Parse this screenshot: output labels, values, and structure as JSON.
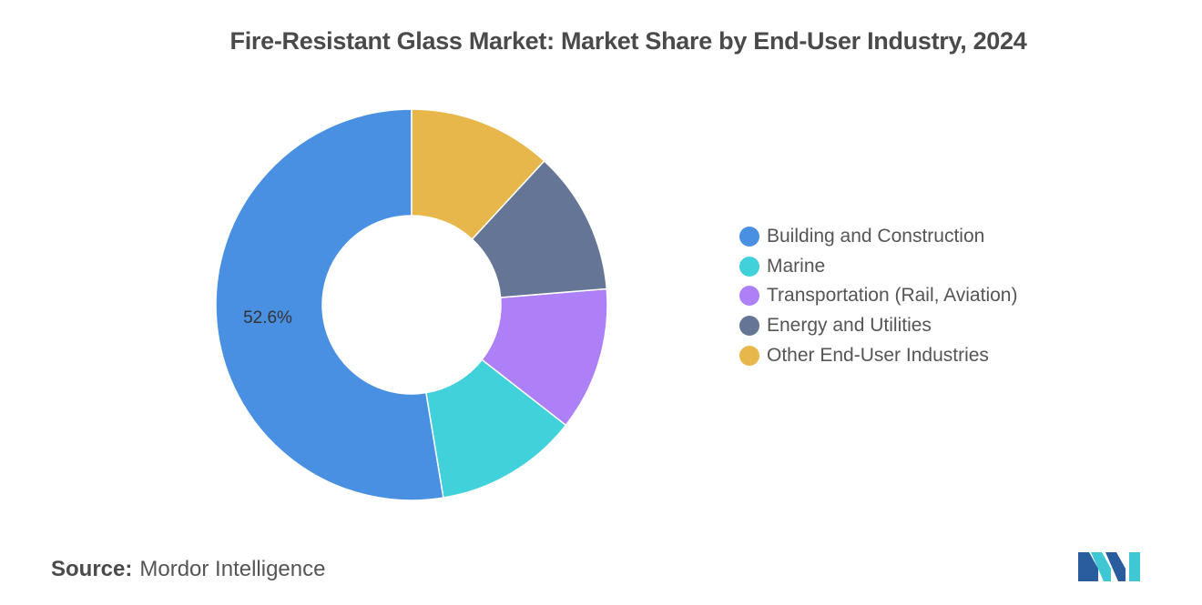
{
  "colors": {
    "building": "#4a90e2",
    "marine": "#41d1db",
    "transportation": "#ad80f8",
    "energy": "#657595",
    "other": "#e8b74b",
    "logo_primary": "#2a5d9e",
    "logo_accent": "#3fc7d3"
  },
  "chart_data": {
    "type": "pie",
    "title": "Fire-Resistant Glass Market: Market Share by End-User Industry, 2024",
    "donut": true,
    "legend_position": "right",
    "slices": [
      {
        "label": "Building and Construction",
        "value": 52.6,
        "color": "#4a90e2",
        "data_label": "52.6%"
      },
      {
        "label": "Marine",
        "value": 11.85,
        "color": "#41d1db",
        "data_label": ""
      },
      {
        "label": "Transportation (Rail, Aviation)",
        "value": 11.85,
        "color": "#ad80f8",
        "data_label": ""
      },
      {
        "label": "Energy and Utilities",
        "value": 11.85,
        "color": "#657595",
        "data_label": ""
      },
      {
        "label": "Other End-User Industries",
        "value": 11.85,
        "color": "#e8b74b",
        "data_label": ""
      }
    ]
  },
  "footer": {
    "source_label": "Source:",
    "source_value": "Mordor Intelligence"
  },
  "logo": {
    "icon": "mordor-intelligence-logo-icon"
  }
}
